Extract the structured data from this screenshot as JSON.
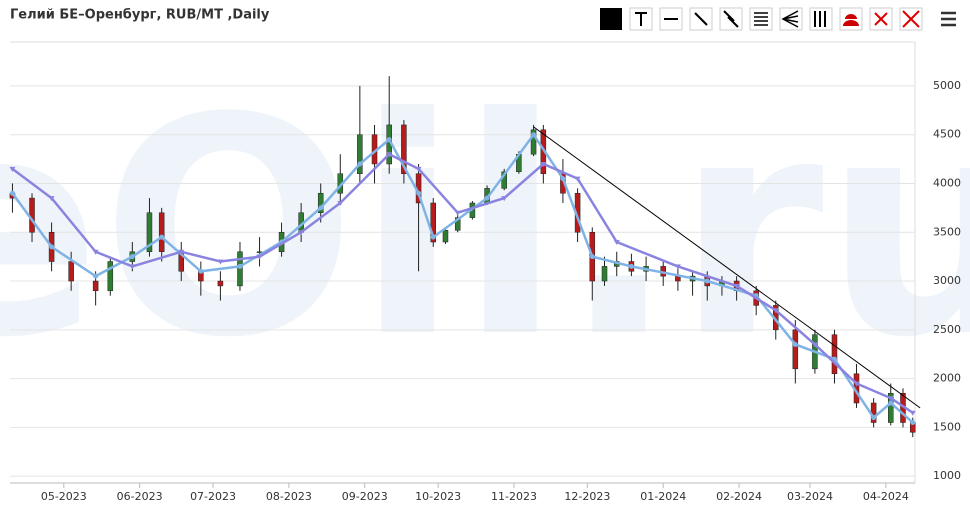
{
  "chart_data": {
    "type": "candlestick",
    "title": "Гелий БЕ–Оренбург, RUB/MT ,Daily",
    "watermark": "eOil.ru",
    "x": [
      -21,
      -13,
      -5,
      3,
      13,
      19,
      28,
      35,
      40,
      48,
      56,
      64,
      72,
      80,
      89,
      97,
      105,
      113,
      121,
      127,
      133,
      139,
      145,
      151,
      156,
      161,
      167,
      173,
      180,
      186,
      192,
      196,
      204,
      210,
      216,
      221,
      226,
      232,
      238,
      245,
      251,
      257,
      263,
      269,
      275,
      283,
      291,
      299,
      307,
      315,
      324,
      331,
      338,
      343,
      347
    ],
    "open": [
      3900,
      3850,
      3500,
      3200,
      3000,
      2900,
      3200,
      3300,
      3700,
      3300,
      3100,
      3000,
      2950,
      3300,
      3300,
      3500,
      3700,
      3900,
      4100,
      4500,
      4200,
      4600,
      4100,
      3800,
      3400,
      3520,
      3650,
      3800,
      3950,
      4120,
      4300,
      4550,
      4100,
      3900,
      3500,
      3000,
      3150,
      3200,
      3100,
      3150,
      3050,
      3000,
      3050,
      2950,
      3000,
      2900,
      2750,
      2500,
      2100,
      2450,
      2050,
      1750,
      1550,
      1850,
      1550
    ],
    "high": [
      4000,
      3900,
      3600,
      3300,
      3100,
      3250,
      3400,
      3850,
      3750,
      3400,
      3200,
      3100,
      3400,
      3450,
      3600,
      3800,
      4000,
      4300,
      5000,
      4600,
      5100,
      4650,
      4200,
      3850,
      3550,
      3680,
      3820,
      3980,
      4150,
      4330,
      4600,
      4600,
      4250,
      3950,
      3550,
      3250,
      3300,
      3280,
      3250,
      3200,
      3150,
      3100,
      3100,
      3050,
      3050,
      2950,
      2800,
      2600,
      2500,
      2500,
      2150,
      1800,
      1950,
      1900,
      1600
    ],
    "low": [
      3700,
      3400,
      3100,
      2900,
      2750,
      2850,
      3100,
      3250,
      3200,
      3000,
      2850,
      2800,
      2900,
      3150,
      3250,
      3400,
      3600,
      3800,
      4000,
      4000,
      4100,
      4000,
      3100,
      3350,
      3380,
      3500,
      3630,
      3780,
      3930,
      4100,
      4280,
      4000,
      3800,
      3400,
      2800,
      2950,
      3050,
      3050,
      3000,
      2950,
      2900,
      2850,
      2800,
      2850,
      2800,
      2650,
      2400,
      1950,
      2050,
      1950,
      1700,
      1500,
      1520,
      1500,
      1400
    ],
    "close": [
      3850,
      3500,
      3200,
      3000,
      2900,
      3200,
      3300,
      3700,
      3300,
      3100,
      3000,
      2950,
      3300,
      3300,
      3500,
      3700,
      3900,
      4100,
      4500,
      4200,
      4600,
      4100,
      3800,
      3400,
      3520,
      3650,
      3800,
      3950,
      4120,
      4300,
      4550,
      4100,
      3900,
      3500,
      3000,
      3150,
      3200,
      3100,
      3150,
      3050,
      3000,
      3050,
      2950,
      3000,
      2900,
      2750,
      2500,
      2100,
      2450,
      2050,
      1750,
      1550,
      1850,
      1550,
      1450
    ],
    "up_color": "#2e7d32",
    "down_color": "#b71c1c",
    "series": [
      {
        "x": [
          -21,
          -5,
          13,
          28,
          40,
          56,
          72,
          89,
          105,
          121,
          133,
          145,
          151,
          173,
          192,
          204,
          216,
          232,
          263,
          283,
          299,
          315,
          331,
          338,
          347
        ],
        "values": [
          3900,
          3350,
          3050,
          3250,
          3450,
          3100,
          3150,
          3400,
          3750,
          4200,
          4450,
          3900,
          3450,
          3850,
          4500,
          4050,
          3250,
          3150,
          3000,
          2850,
          2350,
          2200,
          1600,
          1750,
          1550
        ],
        "color": "#7fb3e6",
        "marker": "circle"
      },
      {
        "x": [
          -21,
          -5,
          13,
          28,
          48,
          64,
          80,
          97,
          113,
          133,
          145,
          161,
          180,
          196,
          210,
          226,
          251,
          275,
          291,
          307,
          324,
          338,
          347
        ],
        "values": [
          4150,
          3850,
          3300,
          3150,
          3300,
          3200,
          3250,
          3500,
          3800,
          4300,
          4150,
          3700,
          3850,
          4200,
          4050,
          3400,
          3150,
          2950,
          2700,
          2350,
          1950,
          1800,
          1650
        ],
        "color": "#8a84e0",
        "marker": "triangle"
      }
    ],
    "trend_line": {
      "x": [
        192,
        350
      ],
      "values": [
        4580,
        1700
      ],
      "color": "#000000"
    },
    "xlim": [
      -22,
      352
    ],
    "xticks": [
      {
        "value": 0,
        "label": "05-2023"
      },
      {
        "value": 31,
        "label": "06-2023"
      },
      {
        "value": 61,
        "label": "07-2023"
      },
      {
        "value": 92,
        "label": "08-2023"
      },
      {
        "value": 123,
        "label": "09-2023"
      },
      {
        "value": 153,
        "label": "10-2023"
      },
      {
        "value": 184,
        "label": "11-2023"
      },
      {
        "value": 214,
        "label": "12-2023"
      },
      {
        "value": 245,
        "label": "01-2024"
      },
      {
        "value": 276,
        "label": "02-2024"
      },
      {
        "value": 305,
        "label": "03-2024"
      },
      {
        "value": 336,
        "label": "04-2024"
      }
    ],
    "ylim": [
      930,
      5450
    ],
    "yticks": [
      1000,
      1500,
      2000,
      2500,
      3000,
      3500,
      4000,
      4500,
      5000
    ],
    "grid": true
  }
}
